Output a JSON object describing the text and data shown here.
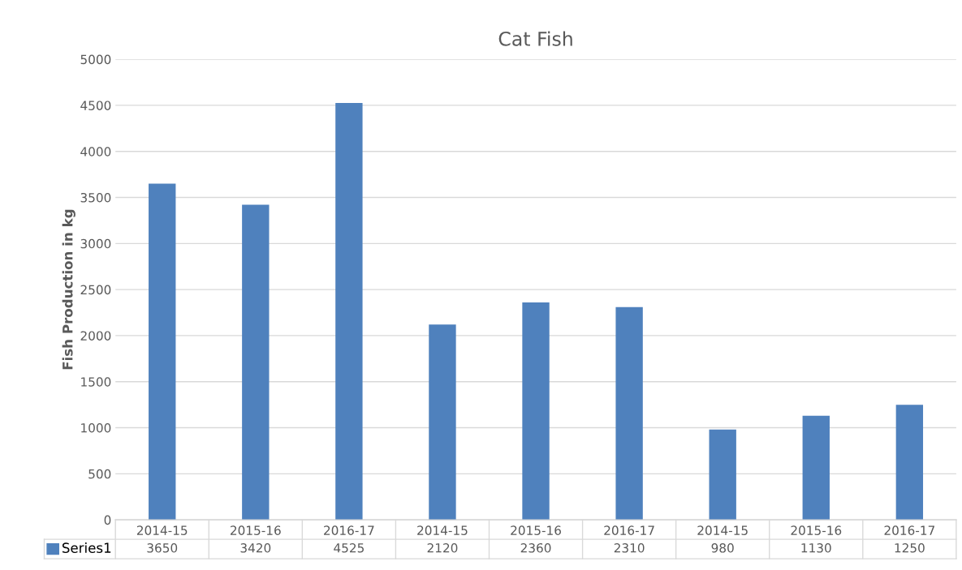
{
  "chart_data": {
    "type": "bar",
    "title": "Cat Fish",
    "ylabel": "Fish Production in kg",
    "categories": [
      "2014-15",
      "2015-16",
      "2016-17",
      "2014-15",
      "2015-16",
      "2016-17",
      "2014-15",
      "2015-16",
      "2016-17"
    ],
    "series": [
      {
        "name": "Series1",
        "color": "#4f81bd",
        "values": [
          3650,
          3420,
          4525,
          2120,
          2360,
          2310,
          980,
          1130,
          1250
        ]
      }
    ],
    "ylim": [
      0,
      5000
    ],
    "yticks": [
      0,
      500,
      1000,
      1500,
      2000,
      2500,
      3000,
      3500,
      4000,
      4500,
      5000
    ],
    "grid": "y",
    "data_labels": true
  }
}
